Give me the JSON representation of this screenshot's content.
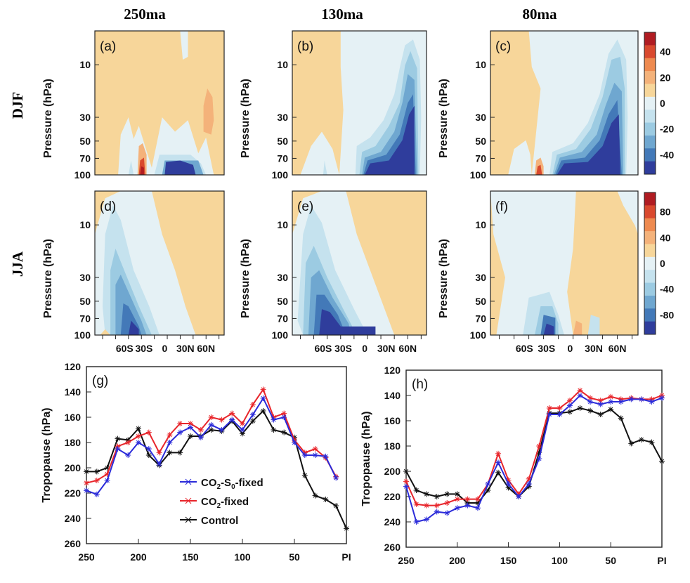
{
  "figure": {
    "column_titles": [
      "250ma",
      "130ma",
      "80ma"
    ],
    "row_titles": [
      "DJF",
      "JJA"
    ],
    "contour_ylabel": "Pressure (hPa)",
    "contour_yticks": [
      "10",
      "30",
      "50",
      "70",
      "100"
    ],
    "contour_xticks": [
      "60S",
      "30S",
      "0",
      "30N",
      "60N"
    ],
    "colors": {
      "pos_light": "#f7d69a",
      "pos_mid": "#f4b27a",
      "pos_orange": "#ee8a4f",
      "pos_red": "#d9492e",
      "pos_dark": "#b01c22",
      "neg_1": "#e5f1f5",
      "neg_2": "#c5e2ee",
      "neg_3": "#9ccbe2",
      "neg_4": "#6fa7d0",
      "neg_5": "#4379b8",
      "neg_6": "#2f3d9c",
      "blue_line": "#2b2bd9",
      "red_line": "#e8252b",
      "black_line": "#111111"
    }
  },
  "chart_data": [
    {
      "id": "a",
      "label": "(a)",
      "type": "heatmap",
      "season": "DJF",
      "period": "250ma",
      "ylabel": "Pressure (hPa)",
      "yticks": [
        "10",
        "30",
        "50",
        "70",
        "100"
      ],
      "colorbar": {
        "ticks": [
          "40",
          "20",
          "0",
          "-20",
          "-40"
        ]
      }
    },
    {
      "id": "b",
      "label": "(b)",
      "type": "heatmap",
      "season": "DJF",
      "period": "130ma"
    },
    {
      "id": "c",
      "label": "(c)",
      "type": "heatmap",
      "season": "DJF",
      "period": "80ma"
    },
    {
      "id": "d",
      "label": "(d)",
      "type": "heatmap",
      "season": "JJA",
      "period": "250ma",
      "xticks": [
        "60S",
        "30S",
        "0",
        "30N",
        "60N"
      ],
      "colorbar": {
        "ticks": [
          "80",
          "40",
          "0",
          "-40",
          "-80"
        ]
      }
    },
    {
      "id": "e",
      "label": "(e)",
      "type": "heatmap",
      "season": "JJA",
      "period": "130ma",
      "xticks": [
        "60S",
        "30S",
        "0",
        "30N",
        "60N"
      ]
    },
    {
      "id": "f",
      "label": "(f)",
      "type": "heatmap",
      "season": "JJA",
      "period": "80ma",
      "xticks": [
        "60S",
        "30S",
        "0",
        "30N",
        "60N"
      ]
    },
    {
      "id": "g",
      "label": "(g)",
      "type": "line",
      "ylabel": "Tropopause (hPa)",
      "ylim": [
        260,
        120
      ],
      "yticks": [
        "120",
        "140",
        "160",
        "180",
        "200",
        "220",
        "240",
        "260"
      ],
      "xticks": [
        "250",
        "200",
        "150",
        "100",
        "50",
        "PI"
      ],
      "x": [
        250,
        240,
        230,
        220,
        210,
        200,
        190,
        180,
        170,
        160,
        150,
        140,
        130,
        120,
        110,
        100,
        90,
        80,
        70,
        60,
        50,
        40,
        30,
        20,
        10,
        0
      ],
      "legend": {
        "placement": "bottom-center"
      },
      "series": [
        {
          "name": "CO2-S0-fixed",
          "legend_parts": [
            "CO",
            "2",
            "-S",
            "0",
            "-fixed"
          ],
          "color": "blue_line",
          "values": [
            218,
            221,
            210,
            185,
            190,
            180,
            185,
            197,
            180,
            172,
            168,
            176,
            166,
            170,
            162,
            170,
            158,
            145,
            162,
            160,
            180,
            190,
            190,
            191,
            208,
            null
          ]
        },
        {
          "name": "CO2-fixed",
          "legend_parts": [
            "CO",
            "2",
            "-fixed"
          ],
          "color": "red_line",
          "values": [
            212,
            210,
            205,
            183,
            180,
            175,
            172,
            188,
            174,
            165,
            165,
            170,
            160,
            162,
            157,
            165,
            150,
            138,
            160,
            157,
            178,
            188,
            185,
            192,
            207,
            null
          ]
        },
        {
          "name": "Control",
          "legend_parts": [
            "Control"
          ],
          "color": "black_line",
          "values": [
            203,
            203,
            200,
            177,
            178,
            169,
            190,
            198,
            188,
            188,
            175,
            175,
            170,
            171,
            163,
            173,
            163,
            155,
            170,
            172,
            176,
            206,
            222,
            225,
            230,
            248
          ]
        }
      ]
    },
    {
      "id": "h",
      "label": "(h)",
      "type": "line",
      "ylabel": "Tropopause (hPa)",
      "ylim": [
        260,
        120
      ],
      "yticks": [
        "120",
        "140",
        "160",
        "180",
        "200",
        "220",
        "240",
        "260"
      ],
      "xticks": [
        "250",
        "200",
        "150",
        "100",
        "50",
        "PI"
      ],
      "x": [
        250,
        240,
        230,
        220,
        210,
        200,
        190,
        180,
        170,
        160,
        150,
        140,
        130,
        120,
        110,
        100,
        90,
        80,
        70,
        60,
        50,
        40,
        30,
        20,
        10,
        0
      ],
      "series": [
        {
          "name": "CO2-S0-fixed",
          "color": "blue_line",
          "values": [
            212,
            240,
            238,
            232,
            233,
            229,
            227,
            229,
            210,
            193,
            210,
            220,
            210,
            190,
            155,
            155,
            148,
            140,
            145,
            147,
            145,
            145,
            143,
            143,
            145,
            142
          ]
        },
        {
          "name": "CO2-fixed",
          "color": "red_line",
          "values": [
            208,
            226,
            227,
            227,
            225,
            222,
            222,
            222,
            210,
            186,
            207,
            218,
            206,
            180,
            150,
            150,
            144,
            136,
            142,
            144,
            141,
            143,
            142,
            143,
            143,
            140
          ]
        },
        {
          "name": "Control",
          "color": "black_line",
          "values": [
            200,
            215,
            218,
            220,
            218,
            218,
            225,
            225,
            215,
            201,
            213,
            220,
            212,
            185,
            154,
            154,
            153,
            150,
            152,
            155,
            151,
            158,
            178,
            175,
            177,
            192
          ]
        }
      ]
    }
  ]
}
